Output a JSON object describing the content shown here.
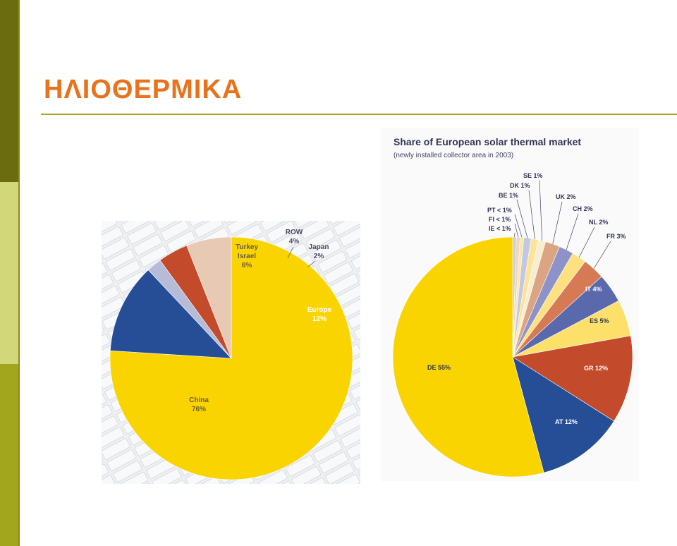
{
  "slide": {
    "title": "ΗΛΙΟΘΕΡΜΙΚΑ",
    "colors": {
      "title": "#e8731c",
      "rule": "#a6a624"
    }
  },
  "chart_data": [
    {
      "type": "pie",
      "title": "",
      "slices": [
        {
          "label": "China",
          "value": 76,
          "display": "76%",
          "color": "#f9d400"
        },
        {
          "label": "Europe",
          "value": 12,
          "display": "12%",
          "color": "#254e96"
        },
        {
          "label": "Japan",
          "value": 2,
          "display": "2%",
          "color": "#b6bcd8"
        },
        {
          "label": "ROW",
          "value": 4,
          "display": "4%",
          "color": "#c34a2a"
        },
        {
          "label": "Turkey Israel",
          "value": 6,
          "display": "6%",
          "color": "#e8c9b4"
        }
      ]
    },
    {
      "type": "pie",
      "title": "Share of European solar thermal market",
      "subtitle": "(newly installed collector area in 2003)",
      "slices": [
        {
          "label": "IE",
          "value": 0.5,
          "display": "IE < 1%",
          "color": "#c8cce6"
        },
        {
          "label": "FI",
          "value": 0.5,
          "display": "FI < 1%",
          "color": "#f0d3c0"
        },
        {
          "label": "PT",
          "value": 0.5,
          "display": "PT < 1%",
          "color": "#fbe7a6"
        },
        {
          "label": "BE",
          "value": 1,
          "display": "BE 1%",
          "color": "#c2c8e4"
        },
        {
          "label": "DK",
          "value": 1,
          "display": "DK 1%",
          "color": "#fce39a"
        },
        {
          "label": "SE",
          "value": 1,
          "display": "SE 1%",
          "color": "#f7eed0"
        },
        {
          "label": "UK",
          "value": 2,
          "display": "UK 2%",
          "color": "#dba583"
        },
        {
          "label": "CH",
          "value": 2,
          "display": "CH 2%",
          "color": "#8d93c8"
        },
        {
          "label": "NL",
          "value": 2,
          "display": "NL 2%",
          "color": "#fde181"
        },
        {
          "label": "FR",
          "value": 3,
          "display": "FR 3%",
          "color": "#d57a55"
        },
        {
          "label": "IT",
          "value": 4,
          "display": "IT 4%",
          "color": "#5a68ac"
        },
        {
          "label": "ES",
          "value": 5,
          "display": "ES 5%",
          "color": "#fde06a"
        },
        {
          "label": "GR",
          "value": 12,
          "display": "GR 12%",
          "color": "#c34a2a"
        },
        {
          "label": "AT",
          "value": 12,
          "display": "AT 12%",
          "color": "#254e96"
        },
        {
          "label": "DE",
          "value": 55,
          "display": "DE 55%",
          "color": "#f9d400"
        }
      ]
    }
  ]
}
